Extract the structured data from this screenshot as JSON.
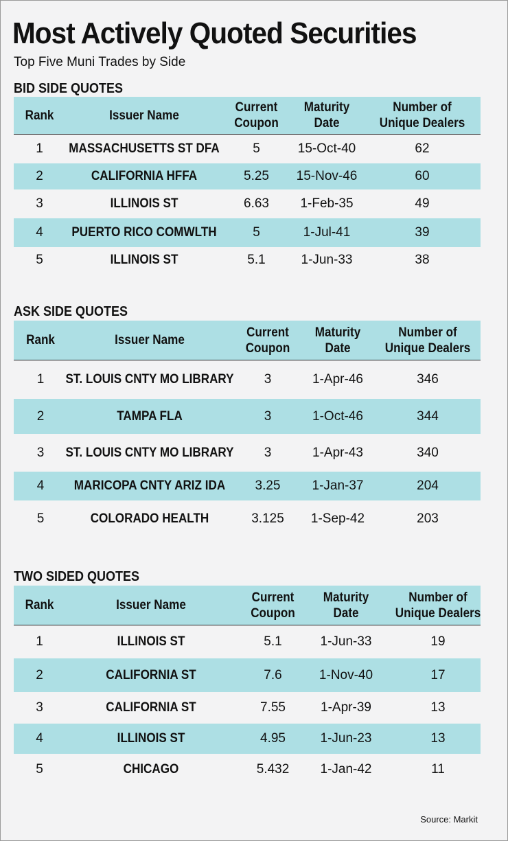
{
  "title": "Most Actively Quoted Securities",
  "subtitle": "Top Five Muni Trades by Side",
  "columns": {
    "rank": "Rank",
    "issuer": "Issuer Name",
    "coupon_1": "Current",
    "coupon_2": "Coupon",
    "maturity_1": "Maturity",
    "maturity_2": "Date",
    "dealers_1": "Number of",
    "dealers_2": "Unique Dealers"
  },
  "sections": [
    {
      "label": "BID SIDE QUOTES",
      "rows": [
        {
          "rank": "1",
          "issuer": "MASSACHUSETTS ST DFA",
          "coupon": "5",
          "maturity": "15-Oct-40",
          "dealers": "62"
        },
        {
          "rank": "2",
          "issuer": "CALIFORNIA HFFA",
          "coupon": "5.25",
          "maturity": "15-Nov-46",
          "dealers": "60"
        },
        {
          "rank": "3",
          "issuer": "ILLINOIS ST",
          "coupon": "6.63",
          "maturity": "1-Feb-35",
          "dealers": "49"
        },
        {
          "rank": "4",
          "issuer": "PUERTO RICO COMWLTH",
          "coupon": "5",
          "maturity": "1-Jul-41",
          "dealers": "39"
        },
        {
          "rank": "5",
          "issuer": "ILLINOIS ST",
          "coupon": "5.1",
          "maturity": "1-Jun-33",
          "dealers": "38"
        }
      ]
    },
    {
      "label": "ASK SIDE QUOTES",
      "rows": [
        {
          "rank": "1",
          "issuer": "ST. LOUIS CNTY MO LIBRARY",
          "coupon": "3",
          "maturity": "1-Apr-46",
          "dealers": "346"
        },
        {
          "rank": "2",
          "issuer": "TAMPA FLA",
          "coupon": "3",
          "maturity": "1-Oct-46",
          "dealers": "344"
        },
        {
          "rank": "3",
          "issuer": "ST. LOUIS CNTY MO LIBRARY",
          "coupon": "3",
          "maturity": "1-Apr-43",
          "dealers": "340"
        },
        {
          "rank": "4",
          "issuer": "MARICOPA CNTY ARIZ IDA",
          "coupon": "3.25",
          "maturity": "1-Jan-37",
          "dealers": "204"
        },
        {
          "rank": "5",
          "issuer": "COLORADO HEALTH",
          "coupon": "3.125",
          "maturity": "1-Sep-42",
          "dealers": "203"
        }
      ]
    },
    {
      "label": "TWO SIDED QUOTES",
      "rows": [
        {
          "rank": "1",
          "issuer": "ILLINOIS ST",
          "coupon": "5.1",
          "maturity": "1-Jun-33",
          "dealers": "19"
        },
        {
          "rank": "2",
          "issuer": "CALIFORNIA ST",
          "coupon": "7.6",
          "maturity": "1-Nov-40",
          "dealers": "17"
        },
        {
          "rank": "3",
          "issuer": "CALIFORNIA ST",
          "coupon": "7.55",
          "maturity": "1-Apr-39",
          "dealers": "13"
        },
        {
          "rank": "4",
          "issuer": "ILLINOIS ST",
          "coupon": "4.95",
          "maturity": "1-Jun-23",
          "dealers": "13"
        },
        {
          "rank": "5",
          "issuer": "CHICAGO",
          "coupon": "5.432",
          "maturity": "1-Jan-42",
          "dealers": "11"
        }
      ]
    }
  ],
  "source": "Source: Markit",
  "colors": {
    "header_fill": "#addfe4",
    "background": "#f3f3f4"
  }
}
